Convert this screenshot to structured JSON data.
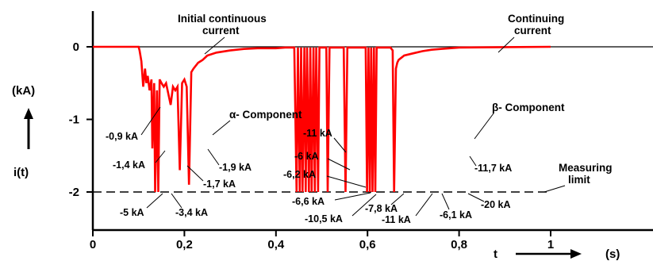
{
  "chart_data": {
    "type": "line",
    "title": "",
    "xlabel": "t",
    "xunit": "(s)",
    "ylabel": "i(t)",
    "yunit": "(kA)",
    "xlim": [
      0,
      1.0
    ],
    "ylim": [
      -2.2,
      0.1
    ],
    "x_ticks": [
      0,
      0.2,
      0.4,
      0.6,
      0.8,
      1.0
    ],
    "x_tick_labels": [
      "0",
      "0,2",
      "0,4",
      "0,6",
      "0,8",
      "1"
    ],
    "y_ticks": [
      0,
      -1,
      -2
    ],
    "y_tick_labels": [
      "0",
      "-1",
      "-2"
    ],
    "grid": false,
    "series_color": "#ff0000",
    "measuring_limit_value": -2,
    "series": [
      {
        "x": [
          0.0,
          0.1,
          0.102,
          0.106,
          0.11,
          0.114,
          0.117,
          0.12,
          0.124,
          0.128,
          0.13,
          0.134,
          0.136,
          0.14,
          0.143,
          0.146,
          0.15,
          0.155,
          0.16,
          0.165,
          0.17,
          0.175,
          0.18,
          0.185,
          0.19,
          0.195,
          0.2,
          0.205,
          0.21,
          0.215,
          0.22,
          0.23,
          0.24,
          0.25,
          0.27,
          0.3,
          0.33,
          0.36,
          0.4,
          0.42,
          0.44,
          0.445,
          0.448,
          0.452,
          0.455,
          0.458,
          0.462,
          0.465,
          0.468,
          0.472,
          0.475,
          0.478,
          0.482,
          0.485,
          0.488,
          0.492,
          0.495,
          0.498,
          0.505,
          0.51,
          0.513,
          0.517,
          0.52,
          0.53,
          0.54,
          0.548,
          0.552,
          0.556,
          0.56,
          0.58,
          0.596,
          0.599,
          0.602,
          0.605,
          0.608,
          0.611,
          0.614,
          0.617,
          0.62,
          0.63,
          0.64,
          0.65,
          0.655,
          0.658,
          0.662,
          0.665,
          0.668,
          0.68,
          0.7,
          0.72,
          0.74,
          0.76,
          0.78,
          0.8,
          1.0
        ],
        "y": [
          0,
          0,
          -0.05,
          -0.2,
          -0.55,
          -0.3,
          -0.5,
          -0.4,
          -0.6,
          -0.45,
          -1.4,
          -0.5,
          -2.0,
          -0.6,
          -2.0,
          -0.45,
          -0.5,
          -0.55,
          -0.5,
          -0.65,
          -0.8,
          -0.55,
          -0.6,
          -0.55,
          -1.7,
          -0.5,
          -0.45,
          -0.55,
          -1.9,
          -0.35,
          -0.3,
          -0.22,
          -0.18,
          -0.12,
          -0.08,
          -0.05,
          -0.03,
          -0.02,
          -0.02,
          -0.01,
          -0.01,
          -2.0,
          -0.01,
          -2.0,
          -0.01,
          -2.0,
          -0.01,
          -2.0,
          -0.01,
          -2.0,
          -0.01,
          -2.0,
          -0.01,
          -2.0,
          -0.01,
          -2.0,
          -0.01,
          -0.01,
          -0.01,
          -0.01,
          -2.0,
          -0.01,
          -0.01,
          -0.01,
          -0.01,
          -0.01,
          -2.0,
          -0.01,
          -0.01,
          -0.01,
          -0.01,
          -2.0,
          -0.01,
          -2.0,
          -0.01,
          -2.0,
          -0.01,
          -2.0,
          -0.01,
          -0.01,
          -0.01,
          -0.01,
          -0.05,
          -2.0,
          -0.3,
          -0.22,
          -0.18,
          -0.12,
          -0.09,
          -0.06,
          -0.04,
          -0.03,
          -0.02,
          -0.01,
          0
        ]
      }
    ],
    "annotations": {
      "initial_current_line1": "Initial continuous",
      "initial_current_line2": "current",
      "continuing_current_line1": "Continuing",
      "continuing_current_line2": "current",
      "alpha_component": "α- Component",
      "beta_component": "β- Component",
      "measuring_limit_line1": "Measuring",
      "measuring_limit_line2": "limit",
      "alpha_labels": [
        "-0,9 kA",
        "-1,4 kA",
        "-5 kA",
        "-3,4 kA",
        "-1,9 kA",
        "-1,7 kA"
      ],
      "beta_labels": [
        "-11 kA",
        "-6 kA",
        "-6,2 kA",
        "-6,6 kA",
        "-10,5 kA",
        "-7,8 kA",
        "-11 kA",
        "-6,1 kA",
        "-20 kA",
        "-11,7 kA"
      ]
    }
  }
}
